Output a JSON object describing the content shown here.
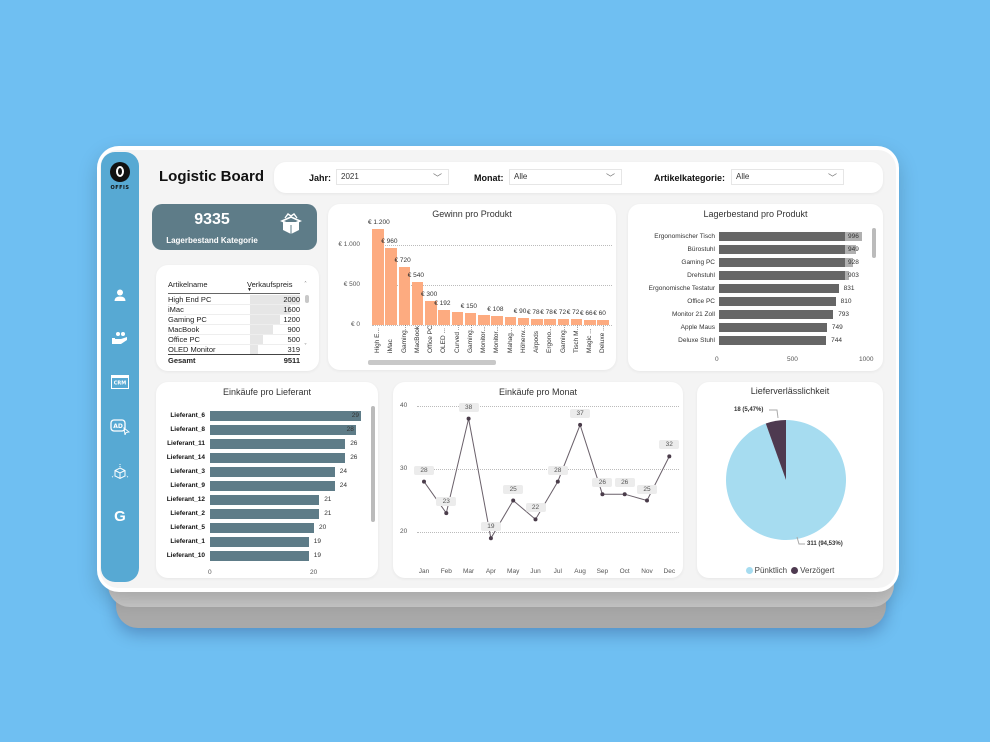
{
  "app": {
    "title": "Logistic Board",
    "logo_text": "OFFIS"
  },
  "sidebar": {
    "items": [
      {
        "name": "user-icon",
        "glyph": "👤"
      },
      {
        "name": "supplier-hand-icon",
        "glyph": "🤝"
      },
      {
        "name": "crm-icon",
        "glyph": "CRM"
      },
      {
        "name": "ad-icon",
        "glyph": "AD"
      },
      {
        "name": "package-icon",
        "glyph": "⬡"
      },
      {
        "name": "google-icon",
        "glyph": "G"
      }
    ]
  },
  "filters": {
    "year": {
      "label": "Jahr:",
      "value": "2021"
    },
    "month": {
      "label": "Monat:",
      "value": "Alle"
    },
    "category": {
      "label": "Artikelkategorie:",
      "value": "Alle"
    }
  },
  "kpi": {
    "value": "9335",
    "label": "Lagerbestand Kategorie"
  },
  "price_table": {
    "headers": [
      "Artikelname",
      "Verkaufspreis"
    ],
    "rows": [
      {
        "name": "High End PC",
        "value": "2000",
        "num": 2000
      },
      {
        "name": "iMac",
        "value": "1600",
        "num": 1600
      },
      {
        "name": "Gaming PC",
        "value": "1200",
        "num": 1200
      },
      {
        "name": "MacBook",
        "value": "900",
        "num": 900
      },
      {
        "name": "Office PC",
        "value": "500",
        "num": 500
      },
      {
        "name": "OLED Monitor",
        "value": "319",
        "num": 319
      }
    ],
    "total_label": "Gesamt",
    "total_value": "9511"
  },
  "chart_data": [
    {
      "type": "bar",
      "title": "Gewinn pro Produkt",
      "categories": [
        "High E...",
        "iMac",
        "Gaming...",
        "MacBook",
        "Office PC",
        "OLED ...",
        "Curved ...",
        "Gaming...",
        "Monitor...",
        "Monitor...",
        "Mahag...",
        "Höhenv...",
        "Airpods",
        "Ergono...",
        "Gaming...",
        "Tisch M...",
        "Magic ...",
        "Deluxe ..."
      ],
      "values": [
        1200,
        960,
        720,
        540,
        300,
        192,
        160,
        150,
        130,
        108,
        100,
        90,
        78,
        78,
        72,
        72,
        66,
        60
      ],
      "labels": [
        "€ 1.200",
        "€ 960",
        "€ 720",
        "€ 540",
        "€ 300",
        "€ 192",
        "",
        "€ 150",
        "",
        "€ 108",
        "",
        "€ 90",
        "€ 78",
        "€ 78",
        "€ 72",
        "€ 72",
        "€ 66",
        "€ 60"
      ],
      "yticks": [
        "€ 0",
        "€ 500",
        "€ 1.000"
      ],
      "ylim": [
        0,
        1200
      ],
      "color": "#fdab80"
    },
    {
      "type": "bar",
      "orientation": "horizontal",
      "title": "Lagerbestand pro Produkt",
      "categories": [
        "Ergonomischer Tisch",
        "Bürostuhl",
        "Gaming PC",
        "Drehstuhl",
        "Ergonomische Testatur",
        "Office PC",
        "Monitor 21 Zoll",
        "Apple Maus",
        "Deluxe Stuhl"
      ],
      "values": [
        996,
        949,
        928,
        903,
        831,
        810,
        793,
        749,
        744
      ],
      "xticks": [
        "0",
        "500",
        "1000"
      ],
      "xlim": [
        0,
        1000
      ],
      "color": "#666666"
    },
    {
      "type": "bar",
      "orientation": "horizontal",
      "title": "Einkäufe pro Lieferant",
      "categories": [
        "Lieferant_6",
        "Lieferant_8",
        "Lieferant_11",
        "Lieferant_14",
        "Lieferant_3",
        "Lieferant_9",
        "Lieferant_12",
        "Lieferant_2",
        "Lieferant_5",
        "Lieferant_1",
        "Lieferant_10"
      ],
      "values": [
        29,
        28,
        26,
        26,
        24,
        24,
        21,
        21,
        20,
        19,
        19
      ],
      "xticks": [
        "0",
        "20"
      ],
      "xlim": [
        0,
        29
      ],
      "color": "#5e7c88"
    },
    {
      "type": "line",
      "title": "Einkäufe pro Monat",
      "categories": [
        "Jan",
        "Feb",
        "Mar",
        "Apr",
        "May",
        "Jun",
        "Jul",
        "Aug",
        "Sep",
        "Oct",
        "Nov",
        "Dec"
      ],
      "values": [
        28,
        23,
        38,
        19,
        25,
        22,
        28,
        37,
        26,
        26,
        25,
        32
      ],
      "yticks": [
        "20",
        "30",
        "40"
      ],
      "ylim": [
        20,
        40
      ],
      "color": "#4a3c4a"
    },
    {
      "type": "pie",
      "title": "Lieferverlässlichkeit",
      "categories": [
        "Pünktlich",
        "Verzögert"
      ],
      "values": [
        311,
        18
      ],
      "labels": [
        "311 (94,53%)",
        "18 (5,47%)"
      ],
      "colors": [
        "#a6dcf0",
        "#4e3a50"
      ]
    }
  ]
}
